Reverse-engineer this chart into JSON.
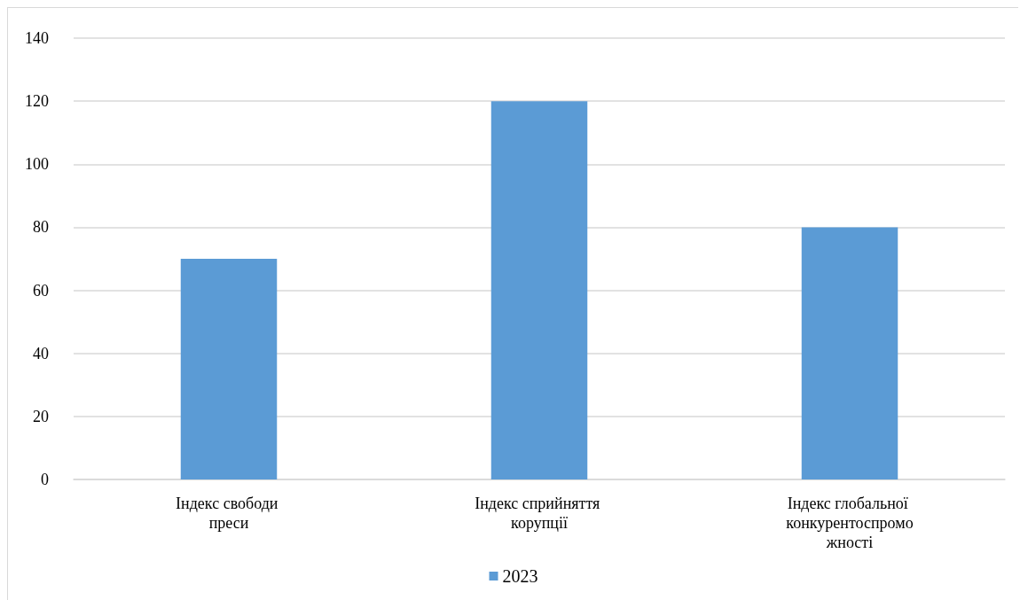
{
  "chart_data": {
    "type": "bar",
    "categories": [
      "Індекс свободи преси",
      "Індекс сприйняття корупції",
      "Індекс глобальної конкурентоспроможності"
    ],
    "series": [
      {
        "name": "2023",
        "color": "#5b9bd5",
        "values": [
          70,
          120,
          80
        ]
      }
    ],
    "ylim": [
      0,
      140
    ],
    "yticks": [
      0,
      20,
      40,
      60,
      80,
      100,
      120,
      140
    ],
    "grid": "y",
    "legend": "bottom"
  }
}
